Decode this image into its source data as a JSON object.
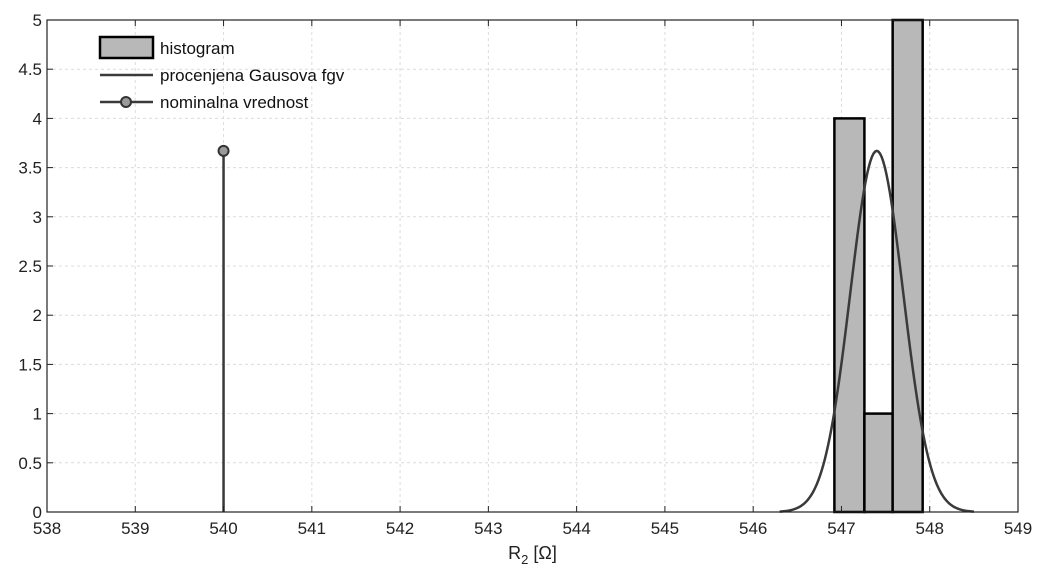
{
  "chart_data": {
    "type": "bar",
    "grid": true,
    "legend_position": "top-left",
    "xlim": [
      538,
      549
    ],
    "ylim": [
      0,
      5
    ],
    "x_ticks": [
      "538",
      "539",
      "540",
      "541",
      "542",
      "543",
      "544",
      "545",
      "546",
      "547",
      "548",
      "549"
    ],
    "y_ticks": [
      "0",
      "0.5",
      "1",
      "1.5",
      "2",
      "2.5",
      "3",
      "3.5",
      "4",
      "4.5",
      "5"
    ],
    "xlabel": {
      "main": "R",
      "sub": "2",
      "unit": " [Ω]"
    },
    "ylabel": "",
    "title": "",
    "legend": [
      "histogram",
      "procenjena Gausova fgv",
      "nominalna vrednost"
    ],
    "colors": {
      "bar_fill": "#b8b8b8",
      "bar_edge": "#000000",
      "curve": "#3a3a3a",
      "stem": "#3a3a3a",
      "grid": "#dcdcdc"
    },
    "histogram": {
      "bin_edges": [
        546.92,
        547.26,
        547.58,
        547.92
      ],
      "counts": [
        4,
        1,
        5
      ]
    },
    "gaussian_pdf": {
      "mean": 547.4,
      "sigma": 0.3,
      "peak": 3.67,
      "x_range": [
        546.3,
        548.5
      ]
    },
    "nominal_value": {
      "x": 540,
      "y": 3.67
    }
  }
}
